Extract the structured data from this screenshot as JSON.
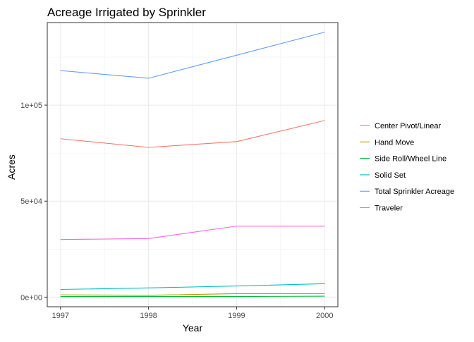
{
  "chart_data": {
    "type": "line",
    "title": "Acreage Irrigated by Sprinkler",
    "xlabel": "Year",
    "ylabel": "Acres",
    "x": [
      1997,
      1998,
      1999,
      2000
    ],
    "xlim": [
      1996.85,
      2000.15
    ],
    "ylim": [
      -5000,
      143000
    ],
    "x_ticks": [
      1997,
      1998,
      1999,
      2000
    ],
    "y_ticks": [
      0,
      50000,
      100000
    ],
    "y_tick_labels": [
      "0e+00",
      "5e+04",
      "1e+05"
    ],
    "grid": true,
    "legend_position": "right",
    "series": [
      {
        "name": "Center Pivot/Linear",
        "color": "#F8766D",
        "values": [
          82500,
          78000,
          81000,
          92000
        ]
      },
      {
        "name": "Hand Move",
        "color": "#B79F00",
        "values": [
          1200,
          1000,
          1800,
          1800
        ]
      },
      {
        "name": "Side Roll/Wheel Line",
        "color": "#00BA38",
        "values": [
          300,
          300,
          300,
          500
        ]
      },
      {
        "name": "Solid Set",
        "color": "#00BFC4",
        "values": [
          4000,
          4800,
          5800,
          7000
        ]
      },
      {
        "name": "Total Sprinkler Acreage",
        "color": "#619CFF",
        "values": [
          118000,
          114000,
          126000,
          138000
        ]
      },
      {
        "name": "Traveler",
        "color": "#F564E3",
        "values": [
          30000,
          30500,
          37000,
          37000
        ]
      }
    ]
  }
}
